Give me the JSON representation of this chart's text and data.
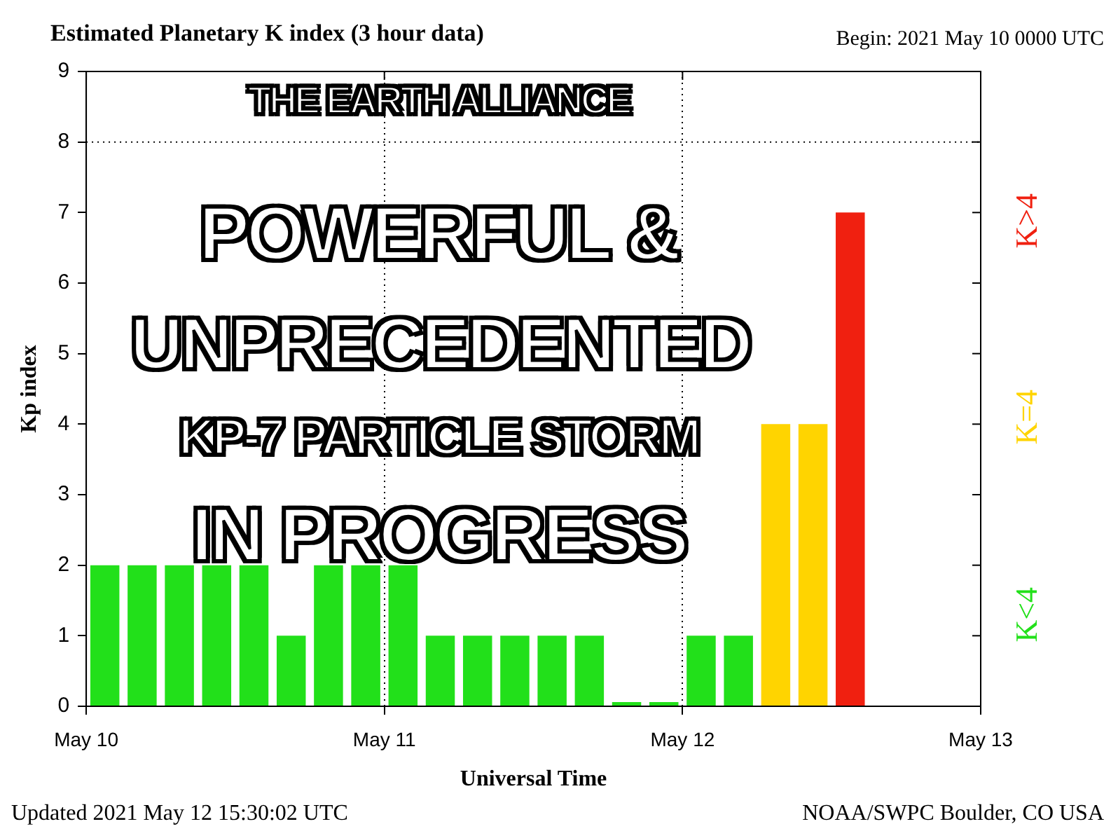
{
  "chart_data": {
    "type": "bar",
    "title": "Estimated Planetary K index (3 hour data)",
    "subtitle": "Begin: 2021 May 10 0000 UTC",
    "xlabel": "Universal Time",
    "ylabel": "Kp index",
    "x": [
      "2021-05-10T01:30",
      "2021-05-10T04:30",
      "2021-05-10T07:30",
      "2021-05-10T10:30",
      "2021-05-10T13:30",
      "2021-05-10T16:30",
      "2021-05-10T19:30",
      "2021-05-10T22:30",
      "2021-05-11T01:30",
      "2021-05-11T04:30",
      "2021-05-11T07:30",
      "2021-05-11T10:30",
      "2021-05-11T13:30",
      "2021-05-11T16:30",
      "2021-05-11T19:30",
      "2021-05-11T22:30",
      "2021-05-12T01:30",
      "2021-05-12T04:30",
      "2021-05-12T07:30",
      "2021-05-12T10:30",
      "2021-05-12T13:30"
    ],
    "series": [
      {
        "name": "K<4",
        "color": "#22e01a",
        "values": [
          2,
          2,
          2,
          2,
          2,
          1,
          2,
          2,
          2,
          1,
          1,
          1,
          1,
          1,
          0,
          0,
          1,
          1,
          null,
          null,
          null
        ]
      },
      {
        "name": "K=4",
        "color": "#ffd400",
        "values": [
          null,
          null,
          null,
          null,
          null,
          null,
          null,
          null,
          null,
          null,
          null,
          null,
          null,
          null,
          null,
          null,
          null,
          null,
          4,
          4,
          null
        ]
      },
      {
        "name": "K>4",
        "color": "#f02010",
        "values": [
          null,
          null,
          null,
          null,
          null,
          null,
          null,
          null,
          null,
          null,
          null,
          null,
          null,
          null,
          null,
          null,
          null,
          null,
          null,
          null,
          7
        ]
      }
    ],
    "xlim": [
      "2021-05-10",
      "2021-05-13"
    ],
    "xticks": [
      {
        "value": "2021-05-10",
        "label": "May 10"
      },
      {
        "value": "2021-05-11",
        "label": "May 11"
      },
      {
        "value": "2021-05-12",
        "label": "May 12"
      },
      {
        "value": "2021-05-13",
        "label": "May 13"
      }
    ],
    "ylim": [
      0,
      9
    ],
    "yticks": [
      0,
      1,
      2,
      3,
      4,
      5,
      6,
      7,
      8,
      9
    ],
    "grid": "x",
    "ref_lines": [
      {
        "axis": "y",
        "value": 8,
        "line_style": "dotted"
      }
    ],
    "legend": "right",
    "annotations": [
      "Updated 2021 May 12 15:30:02 UTC",
      "NOAA/SWPC Boulder, CO USA",
      "THE EARTH ALLIANCE",
      "POWERFUL &",
      "UNPRECEDENTED",
      "KP-7 PARTICLE STORM",
      "IN PROGRESS"
    ]
  }
}
